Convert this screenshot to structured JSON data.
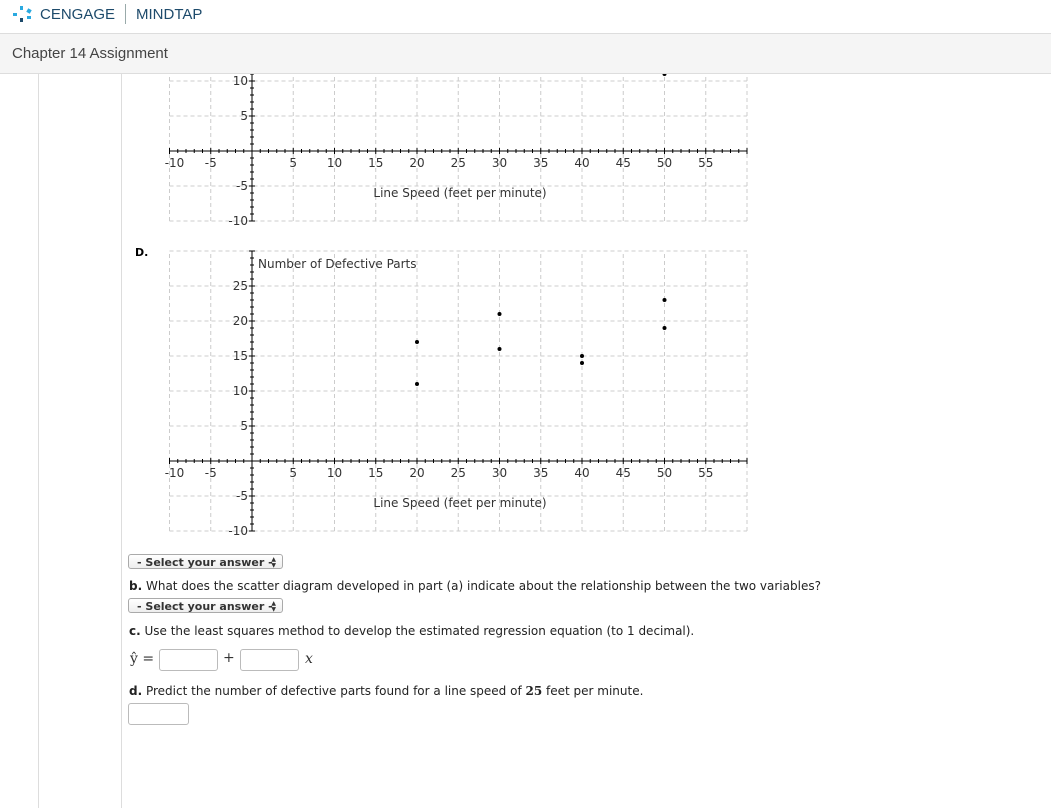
{
  "header": {
    "brand": "CENGAGE",
    "product": "MINDTAP",
    "brand_color": "#1d4a6b",
    "accent": "#2aa9e0"
  },
  "title": "Chapter 14 Assignment",
  "option_label": "D.",
  "chart_data": [
    {
      "type": "scatter",
      "ylabel": "",
      "xlabel": "Line  Speed  (feet  per  minute)",
      "xlim": [
        -10,
        60
      ],
      "ylim": [
        -10,
        11
      ],
      "grid": true,
      "x_ticks": [
        -10,
        -5,
        5,
        10,
        15,
        20,
        25,
        30,
        35,
        40,
        45,
        50,
        55
      ],
      "y_ticks": [
        -10,
        -5,
        5,
        10
      ],
      "points": [
        [
          50,
          11
        ]
      ]
    },
    {
      "type": "scatter",
      "ylabel": "Number  of  Defective  Parts",
      "xlabel": "Line  Speed  (feet  per  minute)",
      "xlim": [
        -10,
        60
      ],
      "ylim": [
        -10,
        30
      ],
      "grid": true,
      "x_ticks": [
        -10,
        -5,
        5,
        10,
        15,
        20,
        25,
        30,
        35,
        40,
        45,
        50,
        55
      ],
      "y_ticks": [
        -10,
        -5,
        5,
        10,
        15,
        20,
        25
      ],
      "points": [
        [
          20,
          17
        ],
        [
          20,
          11
        ],
        [
          30,
          21
        ],
        [
          30,
          16
        ],
        [
          40,
          15
        ],
        [
          40,
          14
        ],
        [
          50,
          23
        ],
        [
          50,
          19
        ]
      ]
    }
  ],
  "select_placeholder": "- Select your answer -",
  "questions": {
    "b": {
      "label": "b.",
      "text": " What does the scatter diagram developed in part (a) indicate about the relationship between the two variables?"
    },
    "c": {
      "label": "c.",
      "text": " Use the least squares method to develop the estimated regression equation (to 1 decimal)."
    },
    "d": {
      "label": "d.",
      "text": " Predict the number of defective parts found for a line speed of ",
      "value": "25",
      "suffix": " feet per minute."
    }
  },
  "equation": {
    "lhs": "ŷ =",
    "plus": "+",
    "x": "x",
    "intercept": "",
    "slope": ""
  },
  "prediction": ""
}
